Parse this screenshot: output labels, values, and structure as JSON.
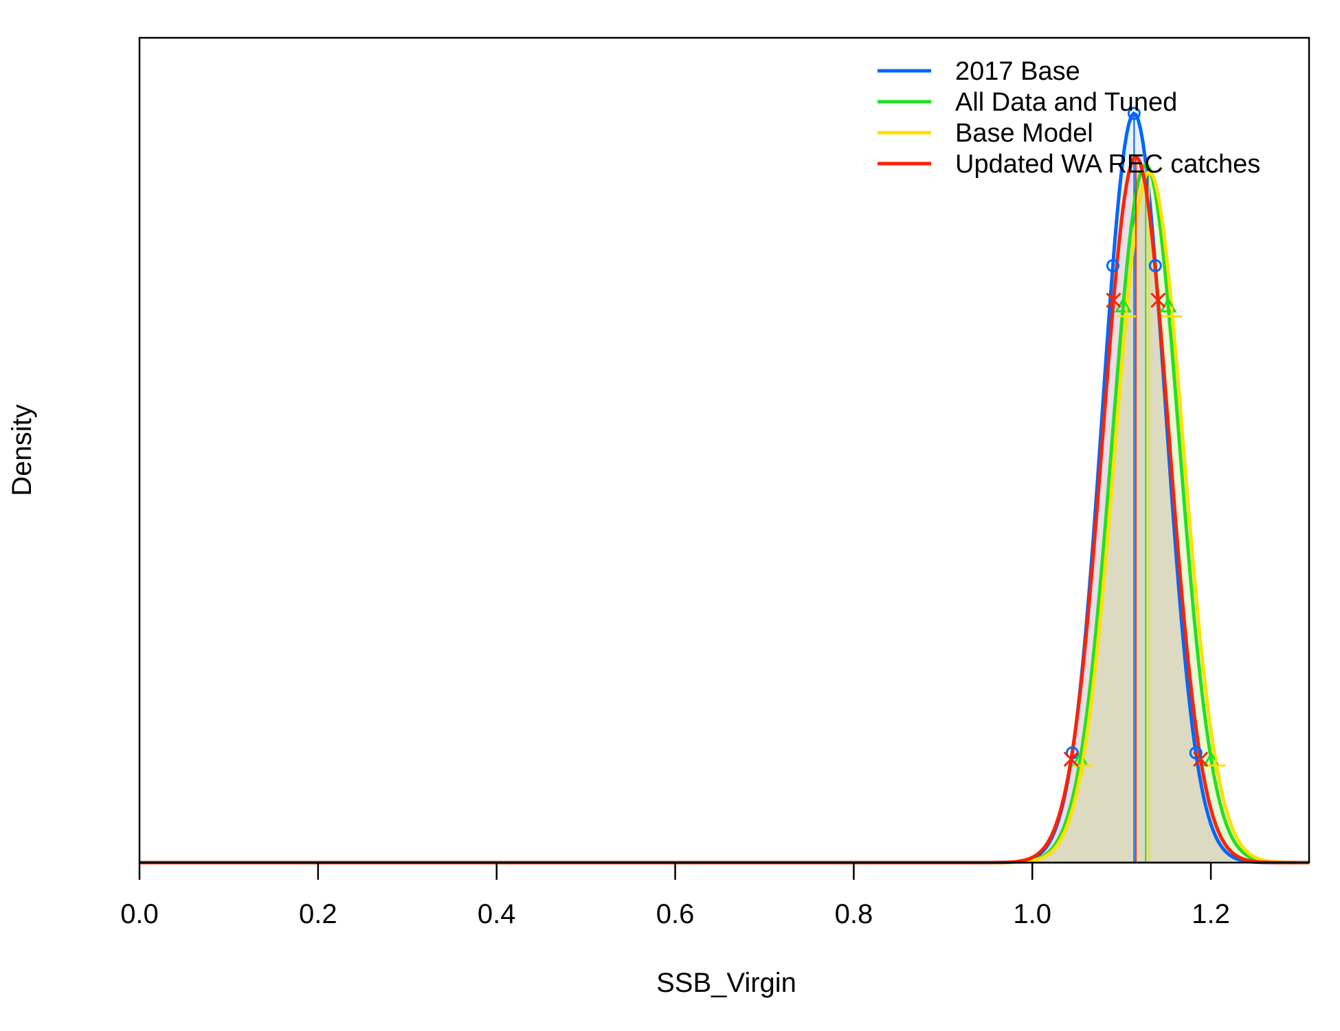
{
  "chart_data": {
    "type": "line",
    "title": "",
    "xlabel": "SSB_Virgin",
    "ylabel": "Density",
    "xlim": [
      0.0,
      1.31
    ],
    "x_ticks": [
      "0.0",
      "0.2",
      "0.4",
      "0.6",
      "0.8",
      "1.0",
      "1.2"
    ],
    "y_ticks": [],
    "grid": false,
    "legend_position": "top-right",
    "series": [
      {
        "name": "2017 Base",
        "color": "#0066ff",
        "marker": "circle",
        "mean": 1.114,
        "sd": 0.0353,
        "peak_rel": 1.0,
        "ci95": [
          0.978,
          1.248
        ]
      },
      {
        "name": "All Data and Tuned",
        "color": "#22e022",
        "marker": "triangle",
        "mean": 1.127,
        "sd": 0.0375,
        "peak_rel": 0.932,
        "ci95": [
          0.987,
          1.265
        ]
      },
      {
        "name": "Base Model",
        "color": "#ffe000",
        "marker": "plus",
        "mean": 1.131,
        "sd": 0.038,
        "peak_rel": 0.922,
        "ci95": [
          0.992,
          1.272
        ]
      },
      {
        "name": "Updated WA REC catches",
        "color": "#ff2200",
        "marker": "x",
        "mean": 1.116,
        "sd": 0.037,
        "peak_rel": 0.942,
        "ci95": [
          0.982,
          1.252
        ]
      }
    ]
  }
}
